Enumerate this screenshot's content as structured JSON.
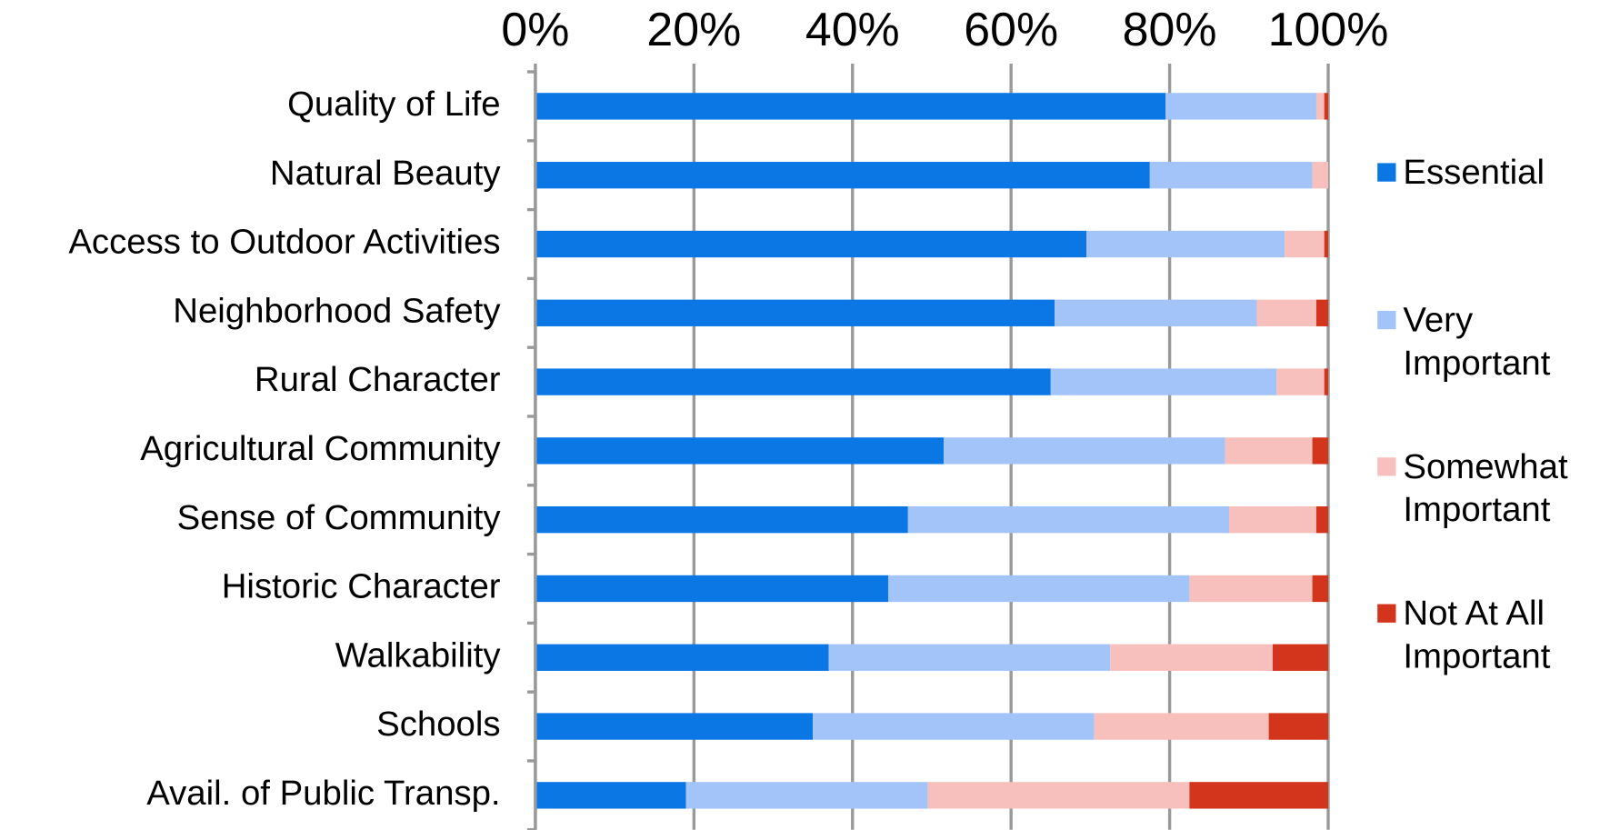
{
  "chart_data": {
    "type": "stacked-bar-horizontal",
    "categories": [
      "Quality of Life",
      "Natural Beauty",
      "Access to Outdoor Activities",
      "Neighborhood Safety",
      "Rural Character",
      "Agricultural Community",
      "Sense of Community",
      "Historic Character",
      "Walkability",
      "Schools",
      "Avail. of Public Transp."
    ],
    "series": [
      {
        "name": "Essential",
        "color": "#0a77e5",
        "values": [
          79.5,
          77.5,
          69.5,
          65.5,
          65,
          51.5,
          47,
          44.5,
          37,
          35,
          19
        ]
      },
      {
        "name": "Very Important",
        "color": "#a3c4f8",
        "values": [
          19,
          20.5,
          25,
          25.5,
          28.5,
          35.5,
          40.5,
          38,
          35.5,
          35.5,
          30.5
        ]
      },
      {
        "name": "Somewhat Important",
        "color": "#f7c0bd",
        "values": [
          1,
          2,
          5,
          7.5,
          6,
          11,
          11,
          15.5,
          20.5,
          22,
          33
        ]
      },
      {
        "name": "Not At All Important",
        "color": "#d3341c",
        "values": [
          0.5,
          0,
          0.5,
          1.5,
          0.5,
          2,
          1.5,
          2,
          7,
          7.5,
          17.5
        ]
      }
    ],
    "xlim": [
      0,
      100
    ],
    "xticks": [
      {
        "value": 0,
        "label": "0%"
      },
      {
        "value": 20,
        "label": "20%"
      },
      {
        "value": 40,
        "label": "40%"
      },
      {
        "value": 60,
        "label": "60%"
      },
      {
        "value": 80,
        "label": "80%"
      },
      {
        "value": 100,
        "label": "100%"
      }
    ],
    "grid": true,
    "legend": "right"
  }
}
